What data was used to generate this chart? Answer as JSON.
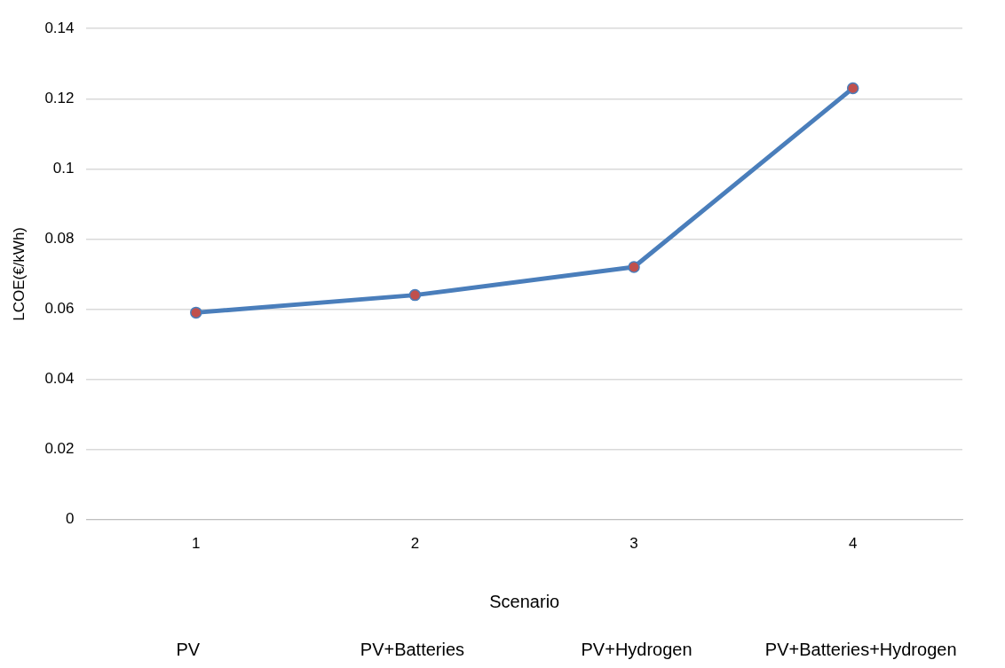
{
  "chart_data": {
    "type": "line",
    "categories": [
      "1",
      "2",
      "3",
      "4"
    ],
    "series": [
      {
        "color": "#4a7ebb",
        "values": [
          0.059,
          0.064,
          0.072,
          0.123
        ]
      }
    ],
    "xlabel": "Scenario",
    "ylabel": "LCOE(€/kWh)",
    "ylim": [
      0,
      0.14
    ],
    "yticks": [
      0,
      0.02,
      0.04,
      0.06,
      0.08,
      0.1,
      0.12,
      0.14
    ],
    "grid": "y",
    "legend": false,
    "marker": "circle",
    "line_style": "solid",
    "annotations": [
      "PV",
      "PV+Batteries",
      "PV+Hydrogen",
      "PV+Batteries+Hydrogen"
    ]
  }
}
